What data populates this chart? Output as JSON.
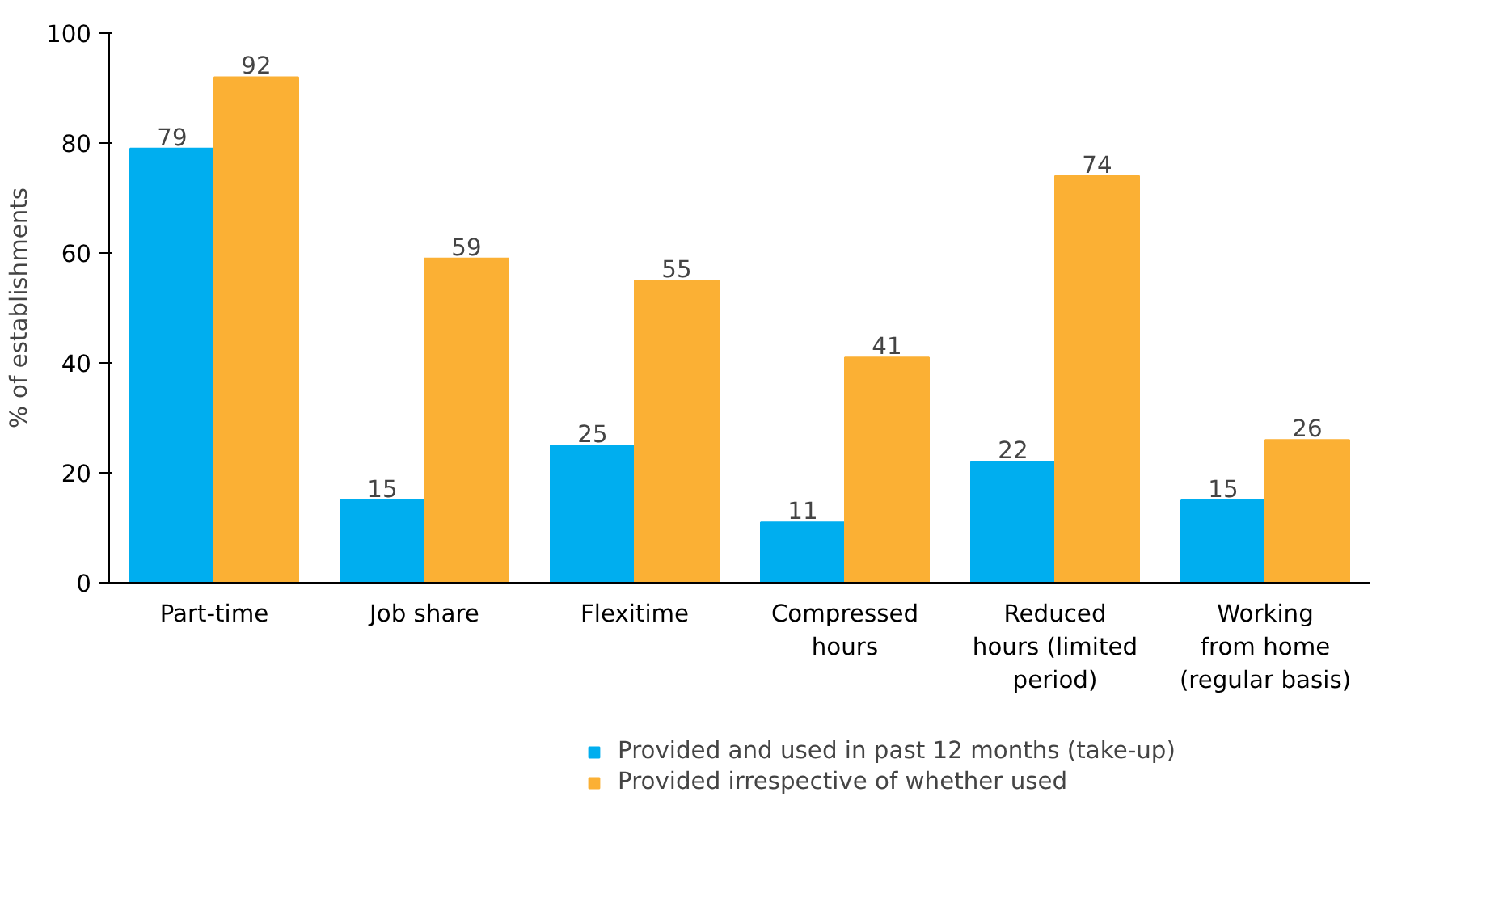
{
  "chart_data": {
    "type": "bar",
    "ylabel": "% of establishments",
    "categories": [
      "Part-time",
      "Job share",
      "Flexitime",
      "Compressed\nhours",
      "Reduced\nhours (limited\nperiod)",
      "Working\nfrom home\n(regular basis)"
    ],
    "series": [
      {
        "name": "Provided and used in past 12 months (take-up)",
        "color": "#00aeef",
        "values": [
          79,
          15,
          25,
          11,
          22,
          15
        ]
      },
      {
        "name": "Provided irrespective of whether used",
        "color": "#fbb034",
        "values": [
          92,
          59,
          55,
          41,
          74,
          26
        ]
      }
    ],
    "ylim": [
      0,
      100
    ],
    "yticks": [
      0,
      20,
      40,
      60,
      80,
      100
    ],
    "grid": false,
    "legend": "bottom",
    "data_labels": true
  }
}
